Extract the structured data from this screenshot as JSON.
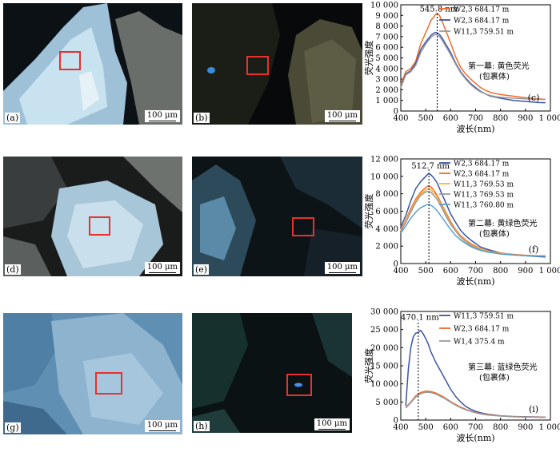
{
  "panels": [
    {
      "id": "a",
      "label": "(a)",
      "scale": "100 μm"
    },
    {
      "id": "b",
      "label": "(b)",
      "scale": "100 μm"
    },
    {
      "id": "d",
      "label": "(d)",
      "scale": "100 μm"
    },
    {
      "id": "e",
      "label": "(e)",
      "scale": "100 μm"
    },
    {
      "id": "g",
      "label": "(g)",
      "scale": "100 μm"
    },
    {
      "id": "h",
      "label": "(h)",
      "scale": "100 μm"
    }
  ],
  "chart_data": [
    {
      "type": "line",
      "panel_label": "(c)",
      "xlabel": "波长(nm)",
      "ylabel": "荧光强度",
      "xlim": [
        400,
        1000
      ],
      "ylim": [
        0,
        10000
      ],
      "xticks": [
        400,
        500,
        600,
        700,
        800,
        900,
        1000
      ],
      "xtick_labels": [
        "400",
        "500",
        "600",
        "700",
        "800",
        "900",
        "1 000"
      ],
      "yticks": [
        0,
        1000,
        2000,
        3000,
        4000,
        5000,
        6000,
        7000,
        8000,
        9000,
        10000
      ],
      "ytick_labels": [
        "0",
        "1 000",
        "2 000",
        "3 000",
        "4 000",
        "5 000",
        "6 000",
        "7 000",
        "8 000",
        "9 000",
        "10 000"
      ],
      "peak": {
        "x": 545.8,
        "label": "545.8 nm",
        "ymax": 9300
      },
      "annotation": [
        "第一幕: 黄色荧光",
        "(包裹体)"
      ],
      "series": [
        {
          "name": "W2,3 684.17 m",
          "color": "#f26b2a",
          "x": [
            400,
            420,
            440,
            460,
            480,
            500,
            510,
            520,
            530,
            540,
            546,
            555,
            565,
            580,
            600,
            620,
            640,
            660,
            680,
            700,
            720,
            740,
            760,
            780,
            800,
            850,
            900,
            950,
            980
          ],
          "y": [
            2500,
            3700,
            4000,
            4700,
            6300,
            7400,
            7900,
            8500,
            8800,
            9100,
            9200,
            9000,
            8500,
            7600,
            6400,
            5100,
            4100,
            3500,
            3000,
            2600,
            2200,
            1950,
            1750,
            1650,
            1550,
            1400,
            1250,
            1150,
            1100
          ]
        },
        {
          "name": "W2,3 684.17 m",
          "color": "#3a55a6",
          "x": [
            400,
            420,
            440,
            460,
            480,
            500,
            510,
            520,
            530,
            540,
            546,
            555,
            565,
            580,
            600,
            620,
            640,
            660,
            680,
            700,
            720,
            740,
            760,
            780,
            800,
            850,
            900,
            950,
            980
          ],
          "y": [
            2300,
            3500,
            3800,
            4500,
            5800,
            6500,
            6800,
            7100,
            7300,
            7400,
            7350,
            7200,
            6900,
            6300,
            5500,
            4500,
            3700,
            3100,
            2600,
            2200,
            1850,
            1600,
            1400,
            1300,
            1200,
            1000,
            900,
            800,
            780
          ]
        },
        {
          "name": "W11,3 759.51 m",
          "color": "#9a9a9a",
          "x": [
            400,
            420,
            440,
            460,
            480,
            500,
            510,
            520,
            530,
            540,
            546,
            555,
            565,
            580,
            600,
            620,
            640,
            660,
            680,
            700,
            720,
            740,
            760,
            780,
            800,
            850,
            900,
            950,
            980
          ],
          "y": [
            2200,
            3400,
            3700,
            4300,
            5500,
            6300,
            6600,
            6900,
            7100,
            7200,
            7150,
            7000,
            6700,
            6100,
            5300,
            4400,
            3600,
            3000,
            2500,
            2100,
            1800,
            1600,
            1450,
            1350,
            1300,
            1200,
            1150,
            1100,
            1080
          ]
        }
      ]
    },
    {
      "type": "line",
      "panel_label": "(f)",
      "xlabel": "波长(nm)",
      "ylabel": "荧光强度",
      "xlim": [
        400,
        1000
      ],
      "ylim": [
        0,
        12000
      ],
      "xticks": [
        400,
        500,
        600,
        700,
        800,
        900,
        1000
      ],
      "xtick_labels": [
        "400",
        "500",
        "600",
        "700",
        "800",
        "900",
        "1 000"
      ],
      "yticks": [
        0,
        2000,
        4000,
        6000,
        8000,
        10000,
        12000
      ],
      "ytick_labels": [
        "0",
        "2 000",
        "4 000",
        "6 000",
        "8 000",
        "10 000",
        "12 000"
      ],
      "peak": {
        "x": 512.7,
        "label": "512.7 nm",
        "ymax": 10800
      },
      "annotation": [
        "第二幕: 黄绿色荧光",
        "(包裹体)"
      ],
      "series": [
        {
          "name": "W2,3 684.17 m",
          "color": "#3a55a6",
          "x": [
            400,
            420,
            440,
            460,
            480,
            500,
            510,
            520,
            530,
            545,
            560,
            580,
            600,
            620,
            640,
            660,
            680,
            700,
            720,
            750,
            800,
            850,
            900,
            950,
            980
          ],
          "y": [
            4200,
            5500,
            7200,
            8600,
            9400,
            10000,
            10300,
            10200,
            9900,
            9300,
            8300,
            7000,
            5700,
            4700,
            3800,
            3200,
            2700,
            2300,
            1900,
            1600,
            1200,
            1000,
            900,
            800,
            750
          ]
        },
        {
          "name": "W2,3 684.17 m",
          "color": "#f26b2a",
          "x": [
            400,
            420,
            440,
            460,
            480,
            500,
            510,
            520,
            530,
            545,
            560,
            580,
            600,
            620,
            640,
            660,
            680,
            700,
            720,
            750,
            800,
            850,
            900,
            950,
            980
          ],
          "y": [
            3900,
            5000,
            6300,
            7400,
            8200,
            8700,
            8900,
            8800,
            8500,
            7900,
            7000,
            5900,
            4800,
            3900,
            3200,
            2700,
            2300,
            2000,
            1700,
            1450,
            1200,
            1050,
            950,
            900,
            880
          ]
        },
        {
          "name": "W11,3 769.53 m",
          "color": "#f4b63a",
          "x": [
            400,
            420,
            440,
            460,
            480,
            500,
            510,
            520,
            530,
            545,
            560,
            580,
            600,
            620,
            640,
            660,
            680,
            700,
            720,
            750,
            800,
            850,
            900,
            950,
            980
          ],
          "y": [
            3800,
            4900,
            6100,
            7200,
            8000,
            8400,
            8600,
            8500,
            8200,
            7700,
            6800,
            5700,
            4600,
            3800,
            3100,
            2600,
            2200,
            1900,
            1650,
            1400,
            1150,
            1000,
            920,
            880,
            860
          ]
        },
        {
          "name": "W11,3 769.53 m",
          "color": "#9a9a9a",
          "x": [
            400,
            420,
            440,
            460,
            480,
            500,
            510,
            520,
            530,
            545,
            560,
            580,
            600,
            620,
            640,
            660,
            680,
            700,
            720,
            750,
            800,
            850,
            900,
            950,
            980
          ],
          "y": [
            3700,
            4700,
            5900,
            7000,
            7800,
            8200,
            8300,
            8200,
            7900,
            7400,
            6600,
            5500,
            4500,
            3700,
            3000,
            2500,
            2100,
            1800,
            1550,
            1350,
            1100,
            980,
            900,
            860,
            840
          ]
        },
        {
          "name": "W11,3 760.80 m",
          "color": "#5aa0cf",
          "x": [
            400,
            420,
            440,
            460,
            480,
            500,
            510,
            520,
            530,
            545,
            560,
            580,
            600,
            620,
            640,
            660,
            680,
            700,
            720,
            750,
            800,
            850,
            900,
            950,
            980
          ],
          "y": [
            3500,
            4300,
            5200,
            5900,
            6400,
            6700,
            6800,
            6700,
            6500,
            6100,
            5500,
            4700,
            3900,
            3200,
            2700,
            2300,
            1950,
            1700,
            1500,
            1300,
            1100,
            980,
            900,
            860,
            840
          ]
        }
      ]
    },
    {
      "type": "line",
      "panel_label": "(i)",
      "xlabel": "波长(nm)",
      "ylabel": "荧光强度",
      "xlim": [
        400,
        1000
      ],
      "ylim": [
        0,
        30000
      ],
      "xticks": [
        400,
        500,
        600,
        700,
        800,
        900,
        1000
      ],
      "xtick_labels": [
        "400",
        "500",
        "600",
        "700",
        "800",
        "900",
        "1 000"
      ],
      "yticks": [
        0,
        5000,
        10000,
        15000,
        20000,
        25000,
        30000
      ],
      "ytick_labels": [
        "0",
        "5 000",
        "10 000",
        "15 000",
        "20 000",
        "25 000",
        "30 000"
      ],
      "peak": {
        "x": 470.1,
        "label": "470.1 nm",
        "ymax": 27500
      },
      "annotation": [
        "第三幕: 蓝绿色荧光",
        "(包裹体)"
      ],
      "series": [
        {
          "name": "W11,3 759.51 m",
          "color": "#3a55a6",
          "x": [
            420,
            430,
            440,
            450,
            460,
            470,
            480,
            490,
            500,
            510,
            520,
            540,
            560,
            580,
            600,
            620,
            640,
            660,
            680,
            700,
            720,
            750,
            800,
            850,
            900,
            950,
            980
          ],
          "y": [
            4000,
            14000,
            20000,
            23000,
            24000,
            24200,
            24800,
            23800,
            22500,
            21000,
            19000,
            16000,
            13500,
            11000,
            8500,
            6500,
            5000,
            3800,
            3000,
            2400,
            2000,
            1600,
            1200,
            1000,
            900,
            850,
            800
          ]
        },
        {
          "name": "W2,3 684.17 m",
          "color": "#f26b2a",
          "x": [
            420,
            440,
            460,
            480,
            500,
            520,
            540,
            560,
            580,
            600,
            620,
            640,
            660,
            680,
            700,
            720,
            750,
            800,
            850,
            900,
            950,
            980
          ],
          "y": [
            3500,
            5000,
            6700,
            7600,
            8000,
            7900,
            7500,
            6800,
            6000,
            5100,
            4300,
            3600,
            3000,
            2500,
            2100,
            1800,
            1500,
            1150,
            950,
            850,
            800,
            780
          ]
        },
        {
          "name": "W1,4 375.4 m",
          "color": "#9a9a9a",
          "x": [
            420,
            440,
            460,
            480,
            500,
            520,
            540,
            560,
            580,
            600,
            620,
            640,
            660,
            680,
            700,
            720,
            750,
            800,
            850,
            900,
            950,
            980
          ],
          "y": [
            3300,
            4800,
            6400,
            7300,
            7700,
            7600,
            7200,
            6500,
            5800,
            4900,
            4100,
            3400,
            2850,
            2400,
            2000,
            1700,
            1400,
            1100,
            900,
            820,
            780,
            760
          ]
        }
      ]
    }
  ]
}
